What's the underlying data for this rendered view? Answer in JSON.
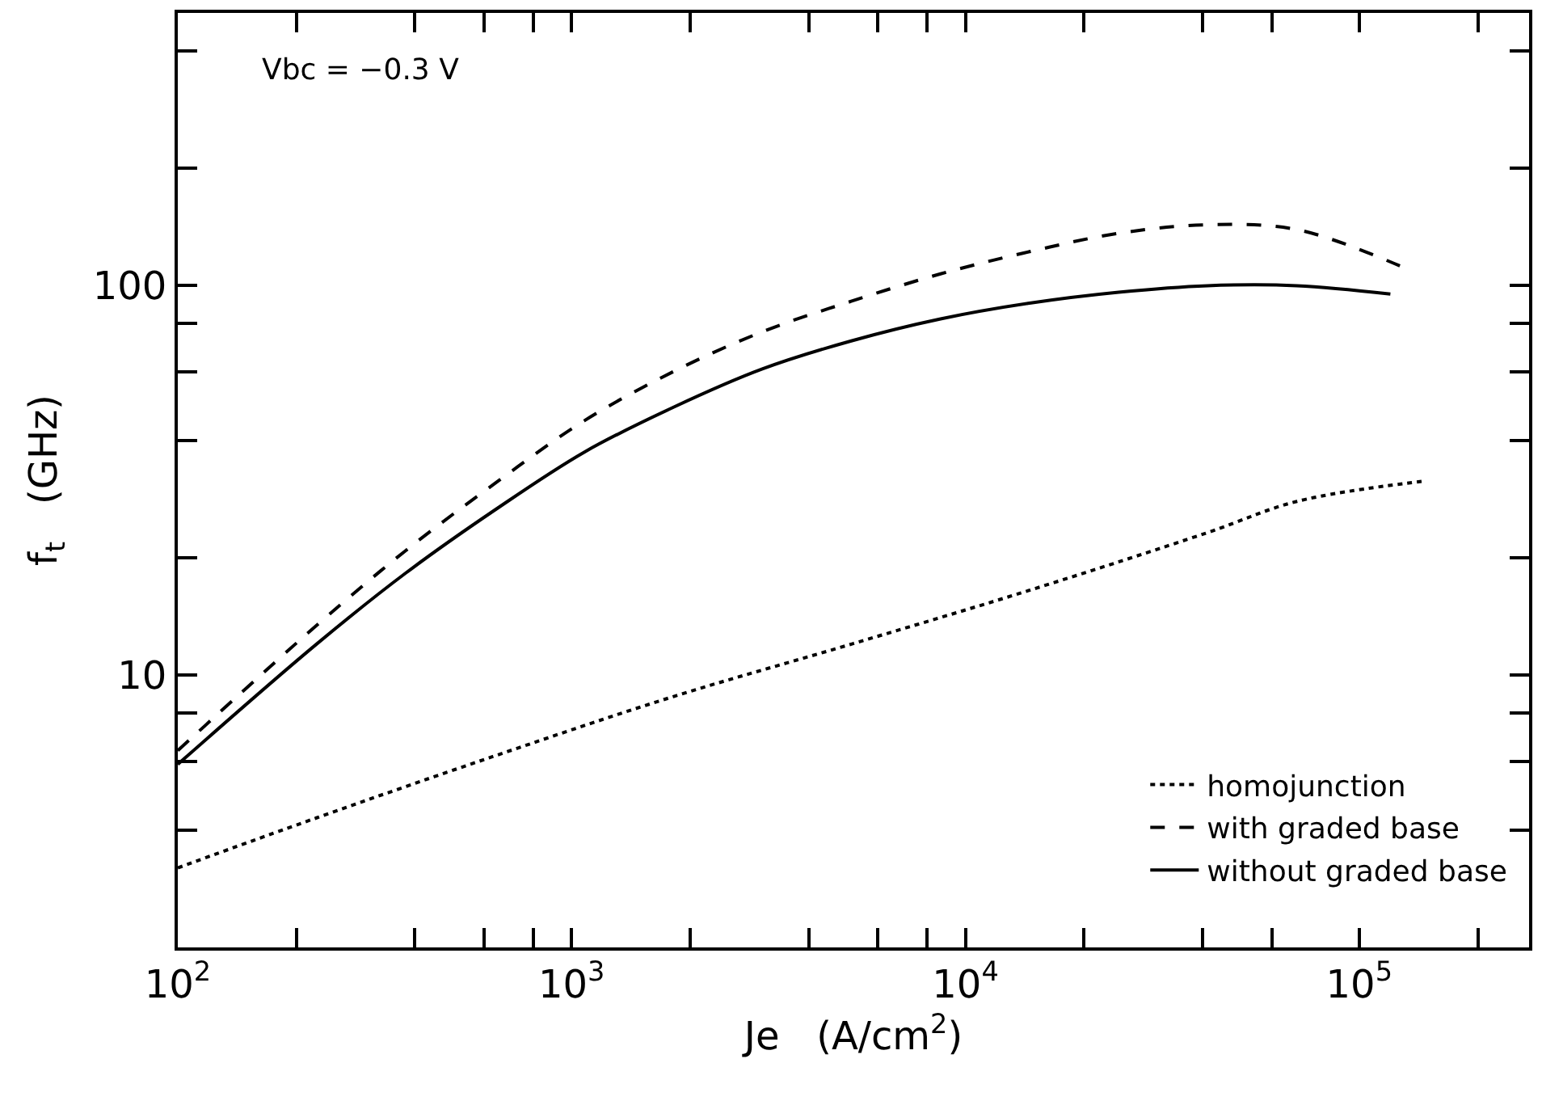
{
  "chart_data": {
    "type": "line",
    "xlabel": "Je   (A/cm$^{2}$)",
    "ylabel": "f$_{t}$   (GHz)",
    "annotations": [
      "Vbc = −0.3 V"
    ],
    "log": "xy",
    "legend": "bottom right",
    "marker": "none",
    "xlim": [
      100,
      270000
    ],
    "ylim": [
      2,
      500
    ],
    "xticks": [
      {
        "value": 100,
        "label": "10$^{2}$"
      },
      {
        "value": 200,
        "label": null
      },
      {
        "value": 400,
        "label": null
      },
      {
        "value": 600,
        "label": null
      },
      {
        "value": 800,
        "label": null
      },
      {
        "value": 1000,
        "label": "10$^{3}$"
      },
      {
        "value": 2000,
        "label": null
      },
      {
        "value": 4000,
        "label": null
      },
      {
        "value": 6000,
        "label": null
      },
      {
        "value": 8000,
        "label": null
      },
      {
        "value": 10000,
        "label": "10$^{4}$"
      },
      {
        "value": 20000,
        "label": null
      },
      {
        "value": 40000,
        "label": null
      },
      {
        "value": 60000,
        "label": null
      },
      {
        "value": 100000,
        "label": "10$^{5}$"
      },
      {
        "value": 200000,
        "label": null
      }
    ],
    "yticks": [
      {
        "value": 4,
        "label": null
      },
      {
        "value": 6,
        "label": null
      },
      {
        "value": 8,
        "label": null
      },
      10,
      {
        "value": 20,
        "label": null
      },
      {
        "value": 40,
        "label": null
      },
      {
        "value": 60,
        "label": null
      },
      {
        "value": 80,
        "label": null
      },
      100,
      {
        "value": 200,
        "label": null
      },
      {
        "value": 400,
        "label": null
      }
    ],
    "series": [
      {
        "name": "homojunction",
        "color": "#000000",
        "line_style": "dotted",
        "x": [
          100,
          225,
          638,
          1810,
          5130,
          14550,
          41200,
          69500,
          144000
        ],
        "values": [
          3.2,
          4.3,
          6.2,
          8.8,
          12.0,
          16.5,
          23.2,
          27.9,
          31.4
        ]
      },
      {
        "name": "with graded base",
        "color": "#000000",
        "line_style": "dashed",
        "x": [
          100,
          225,
          380,
          638,
          1076,
          1810,
          3050,
          5130,
          8650,
          14550,
          24500,
          41200,
          69500,
          130000
        ],
        "values": [
          6.4,
          13.4,
          20.9,
          31,
          44.9,
          60,
          76,
          91,
          107,
          122,
          136,
          143,
          139,
          111
        ]
      },
      {
        "name": "without graded base",
        "color": "#000000",
        "line_style": "solid",
        "x": [
          100,
          225,
          380,
          638,
          1076,
          1810,
          3050,
          5130,
          8650,
          14550,
          24500,
          41200,
          69500,
          120000
        ],
        "values": [
          5.9,
          12.0,
          18.3,
          26.5,
          37.3,
          48.6,
          61,
          72,
          82,
          90,
          96,
          99.8,
          99.8,
          95
        ]
      }
    ]
  }
}
